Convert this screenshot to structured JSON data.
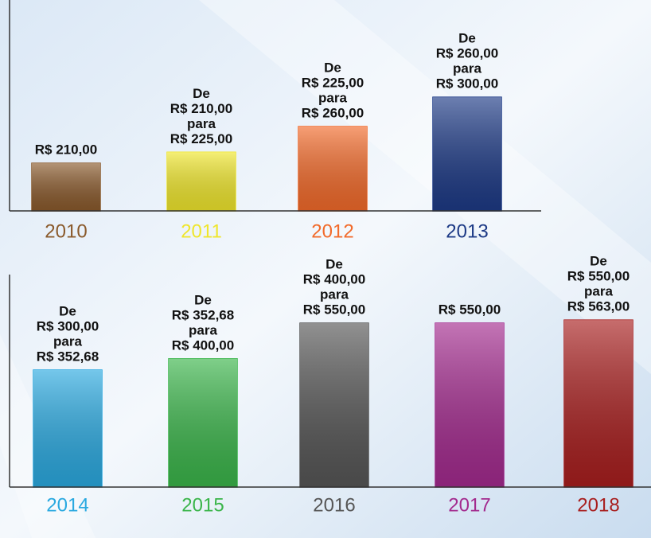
{
  "chart_data": [
    {
      "type": "bar",
      "categories": [
        "2010",
        "2011",
        "2012",
        "2013"
      ],
      "values": [
        210,
        225,
        260,
        300
      ],
      "value_labels": [
        [
          "R$ 210,00"
        ],
        [
          "De",
          "R$ 210,00",
          "para",
          "R$ 225,00"
        ],
        [
          "De",
          "R$ 225,00",
          "para",
          "R$ 260,00"
        ],
        [
          "De",
          "R$ 260,00",
          "para",
          "R$ 300,00"
        ]
      ],
      "colors": [
        "#8a5a2c",
        "#efe62c",
        "#f26a2a",
        "#1d3a86"
      ],
      "ylim": [
        145,
        362
      ]
    },
    {
      "type": "bar",
      "categories": [
        "2014",
        "2015",
        "2016",
        "2017",
        "2018"
      ],
      "values": [
        352.68,
        400,
        550,
        550,
        563
      ],
      "value_labels": [
        [
          "De",
          "R$ 300,00",
          "para",
          "R$ 352,68"
        ],
        [
          "De",
          "R$ 352,68",
          "para",
          "R$ 400,00"
        ],
        [
          "De",
          "R$ 400,00",
          "para",
          "R$ 550,00"
        ],
        [
          "R$ 550,00"
        ],
        [
          "De",
          "R$ 550,00",
          "para",
          "R$ 563,00"
        ]
      ],
      "colors": [
        "#2aa9e0",
        "#3ab54a",
        "#565656",
        "#a32a8e",
        "#a81e1e"
      ],
      "ylim": [
        -140,
        530
      ]
    }
  ]
}
